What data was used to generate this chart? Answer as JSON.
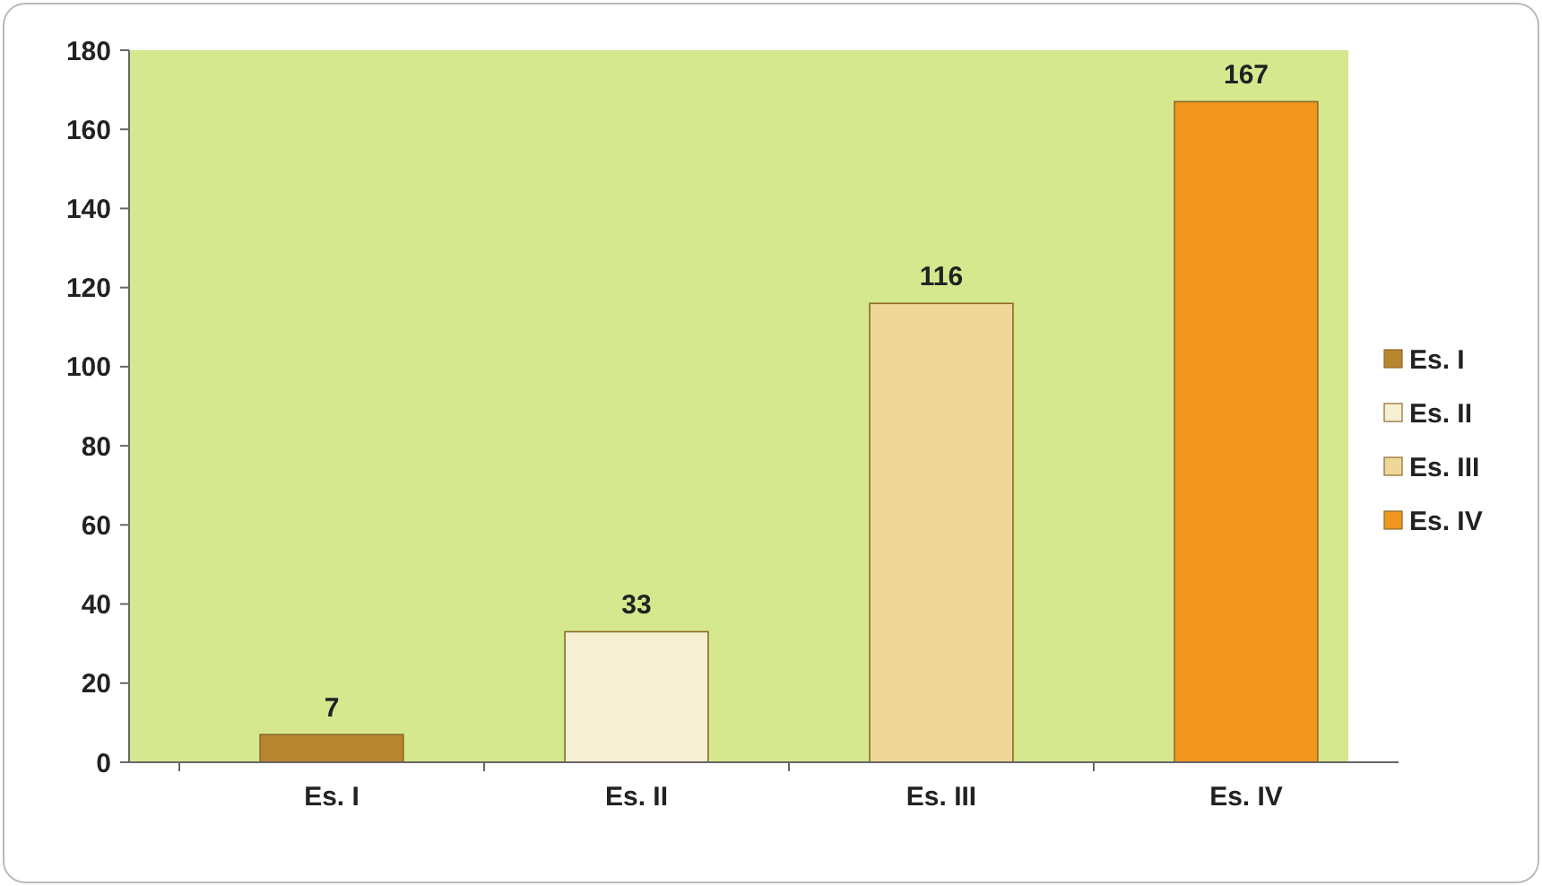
{
  "chart_data": {
    "type": "bar",
    "categories": [
      "Es. I",
      "Es. II",
      "Es. III",
      "Es. IV"
    ],
    "series": [
      {
        "name": "Es. I",
        "color": "#b8862e",
        "values": [
          7,
          null,
          null,
          null
        ]
      },
      {
        "name": "Es. II",
        "color": "#f6f0d2",
        "values": [
          null,
          33,
          null,
          null
        ]
      },
      {
        "name": "Es. III",
        "color": "#efd79a",
        "values": [
          null,
          null,
          116,
          null
        ]
      },
      {
        "name": "Es. IV",
        "color": "#f0961e",
        "values": [
          null,
          null,
          null,
          167
        ]
      }
    ],
    "ylim": [
      0,
      180
    ],
    "yticks": [
      0,
      20,
      40,
      60,
      80,
      100,
      120,
      140,
      160,
      180
    ],
    "data_labels": true,
    "legend": "right",
    "grid": false
  }
}
